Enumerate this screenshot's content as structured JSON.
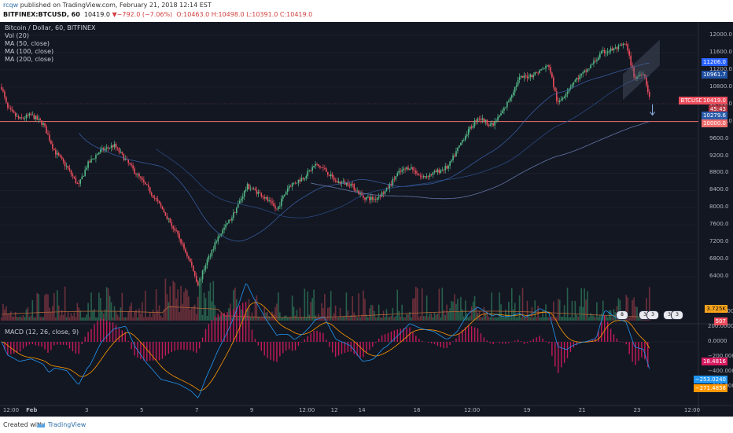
{
  "header": {
    "line1": {
      "user": "rcqw",
      "text": " published on TradingView.com, February 21, 2018 12:14 EST"
    },
    "line2": {
      "symbol": "BITFINEX:BTCUSD, 60",
      "price": "10419.0",
      "arrow": "▼",
      "change": "−792.0 (−7.06%)",
      "ohlc": "O:10463.0 H:10498.0 L:10391.0 C:10419.0"
    }
  },
  "legend": {
    "title": "Bitcoin / Dollar, 60, BITFINEX",
    "vol": "Vol (20)",
    "ma50": "MA (50, close)",
    "ma100": "MA (100, close)",
    "ma200": "MA (200, close)"
  },
  "macd_legend": "MACD (12, 26, close, 9)",
  "price_axis": [
    "12000.0",
    "11600.0",
    "11200.0",
    "10800.0",
    "10400.0",
    "10000.0",
    "9600.0",
    "9200.0",
    "8800.0",
    "8400.0",
    "8000.0",
    "7600.0",
    "7200.0",
    "6800.0",
    "6400.0"
  ],
  "macd_axis": [
    "400.0000",
    "200.0000",
    "0.0000",
    "−200.0000",
    "−400.0000",
    "−600.0000"
  ],
  "badges": {
    "ma_top": "11206.0",
    "ma_mid": "10961.7",
    "btcusd_label": "BTCUSD",
    "btcusd_price": "10419.0",
    "countdown": "45:43",
    "ma_low": "10279.6",
    "level": "10000.0",
    "volume": "3.725K",
    "volume_ma": "507",
    "macd_hist": "18.4816",
    "macd_line": "−253.0240",
    "macd_signal": "−271.4858"
  },
  "x_axis_labels": [
    "12:00",
    "Feb",
    "3",
    "5",
    "7",
    "9",
    "12:00",
    "12",
    "14",
    "16",
    "12:00",
    "19",
    "21",
    "23",
    "12:00"
  ],
  "event_flags": [
    "8",
    "3",
    "3",
    "3",
    "3"
  ],
  "footer": {
    "created": "Created with",
    "brand": "TradingView"
  },
  "colors": {
    "up": "#53b987",
    "down": "#eb4d5c",
    "background": "#131722",
    "level_line": "#f06e6e",
    "macd": "#2196f3",
    "signal": "#ff9800",
    "histogram": "#d81b60"
  },
  "chart_data": {
    "type": "candlestick",
    "title": "Bitcoin / Dollar, 60, BITFINEX",
    "ylim": [
      6000,
      12200
    ],
    "x_range": [
      "Jan 31 12:00",
      "Feb 23 12:00"
    ],
    "horizontal_level": 10000,
    "price_path": [
      {
        "t": 0.0,
        "p": 10800
      },
      {
        "t": 0.4,
        "p": 10300
      },
      {
        "t": 1.2,
        "p": 10050
      },
      {
        "t": 2.0,
        "p": 10150
      },
      {
        "t": 2.8,
        "p": 9950
      },
      {
        "t": 3.6,
        "p": 9300
      },
      {
        "t": 4.4,
        "p": 8950
      },
      {
        "t": 5.2,
        "p": 8500
      },
      {
        "t": 5.8,
        "p": 9000
      },
      {
        "t": 6.6,
        "p": 9300
      },
      {
        "t": 7.6,
        "p": 9450
      },
      {
        "t": 8.4,
        "p": 9100
      },
      {
        "t": 9.2,
        "p": 8750
      },
      {
        "t": 10.0,
        "p": 8400
      },
      {
        "t": 11.0,
        "p": 7900
      },
      {
        "t": 12.0,
        "p": 7300
      },
      {
        "t": 12.8,
        "p": 6700
      },
      {
        "t": 13.3,
        "p": 6200
      },
      {
        "t": 13.8,
        "p": 6700
      },
      {
        "t": 14.6,
        "p": 7300
      },
      {
        "t": 15.6,
        "p": 7800
      },
      {
        "t": 16.6,
        "p": 8500
      },
      {
        "t": 17.6,
        "p": 8300
      },
      {
        "t": 18.6,
        "p": 7950
      },
      {
        "t": 19.4,
        "p": 8500
      },
      {
        "t": 20.4,
        "p": 8700
      },
      {
        "t": 21.2,
        "p": 9000
      },
      {
        "t": 21.8,
        "p": 8900
      },
      {
        "t": 22.6,
        "p": 8600
      },
      {
        "t": 23.6,
        "p": 8550
      },
      {
        "t": 24.4,
        "p": 8250
      },
      {
        "t": 25.2,
        "p": 8200
      },
      {
        "t": 26.0,
        "p": 8400
      },
      {
        "t": 26.8,
        "p": 8800
      },
      {
        "t": 27.6,
        "p": 8950
      },
      {
        "t": 28.4,
        "p": 8700
      },
      {
        "t": 29.2,
        "p": 8800
      },
      {
        "t": 30.2,
        "p": 8950
      },
      {
        "t": 31.2,
        "p": 9600
      },
      {
        "t": 32.2,
        "p": 10100
      },
      {
        "t": 33.2,
        "p": 9900
      },
      {
        "t": 34.0,
        "p": 10300
      },
      {
        "t": 35.0,
        "p": 11000
      },
      {
        "t": 36.0,
        "p": 11100
      },
      {
        "t": 37.0,
        "p": 11300
      },
      {
        "t": 37.6,
        "p": 10400
      },
      {
        "t": 38.6,
        "p": 10900
      },
      {
        "t": 39.6,
        "p": 11200
      },
      {
        "t": 40.6,
        "p": 11600
      },
      {
        "t": 41.6,
        "p": 11700
      },
      {
        "t": 42.2,
        "p": 11800
      },
      {
        "t": 42.8,
        "p": 11000
      },
      {
        "t": 43.4,
        "p": 11150
      },
      {
        "t": 43.9,
        "p": 10420
      }
    ],
    "x_end_time": 47.0
  }
}
